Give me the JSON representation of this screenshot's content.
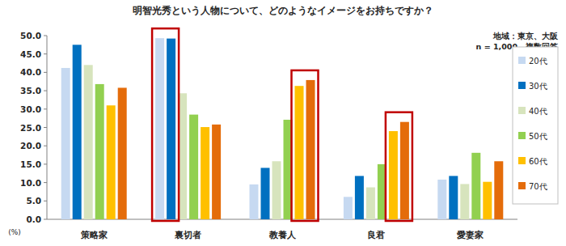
{
  "chart_data": {
    "type": "bar",
    "title": "明智光秀という人物について、どのようなイメージをお持ちですか？",
    "annotations": [
      "地域：東京、大阪",
      "n = 1,000、複数回答"
    ],
    "y_label": "(%)",
    "categories": [
      "策略家",
      "裏切者",
      "教養人",
      "良君",
      "愛妻家"
    ],
    "series": [
      {
        "name": "20代",
        "color": "#c6d9f1",
        "values": [
          41.2,
          49.3,
          9.5,
          6.1,
          10.8
        ]
      },
      {
        "name": "30代",
        "color": "#0070c0",
        "values": [
          47.5,
          49.2,
          14.0,
          11.8,
          11.8
        ]
      },
      {
        "name": "40代",
        "color": "#d7e4bd",
        "values": [
          42.0,
          34.3,
          15.8,
          8.7,
          9.6
        ]
      },
      {
        "name": "50代",
        "color": "#92d050",
        "values": [
          36.8,
          28.5,
          27.1,
          15.0,
          18.1
        ]
      },
      {
        "name": "60代",
        "color": "#ffc000",
        "values": [
          31.0,
          25.1,
          36.3,
          24.0,
          10.2
        ]
      },
      {
        "name": "70代",
        "color": "#e46c0a",
        "values": [
          35.8,
          25.8,
          37.9,
          26.5,
          15.8
        ]
      }
    ],
    "ylim": [
      0,
      50
    ],
    "yticks": [
      {
        "value": 0,
        "label": "0.0"
      },
      {
        "value": 5,
        "label": "5.0"
      },
      {
        "value": 10,
        "label": "10.0"
      },
      {
        "value": 15,
        "label": "15.0"
      },
      {
        "value": 20,
        "label": "20.0"
      },
      {
        "value": 25,
        "label": "25.0"
      },
      {
        "value": 30,
        "label": "30.0"
      },
      {
        "value": 35,
        "label": "35.0"
      },
      {
        "value": 40,
        "label": "40.0"
      },
      {
        "value": 45,
        "label": "45.0"
      },
      {
        "value": 50,
        "label": "50.0"
      }
    ],
    "grid": false,
    "legend": "right"
  }
}
